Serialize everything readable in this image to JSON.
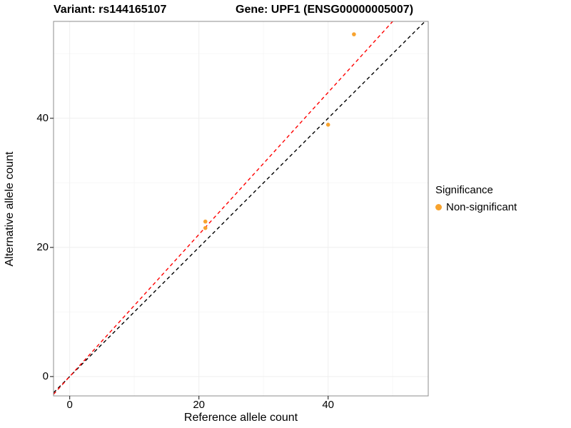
{
  "titles": {
    "left": "Variant: rs144165107",
    "right": "Gene: UPF1 (ENSG00000005007)"
  },
  "chart_data": {
    "type": "scatter",
    "xlabel": "Reference allele count",
    "ylabel": "Alternative allele count",
    "xlim": [
      -2.5,
      55.5
    ],
    "ylim": [
      -3,
      55
    ],
    "xticks": [
      0,
      20,
      40
    ],
    "yticks": [
      0,
      20,
      40
    ],
    "xminor": [
      10,
      30,
      50
    ],
    "yminor": [
      10,
      30,
      50
    ],
    "grid": "on",
    "points": [
      {
        "x": 21,
        "y": 23
      },
      {
        "x": 21,
        "y": 24
      },
      {
        "x": 40,
        "y": 39
      },
      {
        "x": 44,
        "y": 53
      }
    ],
    "point_color": "#F8A32E",
    "point_radius": 2.8,
    "lines": [
      {
        "name": "identity-line",
        "slope": 1,
        "intercept": 0,
        "color": "#000000",
        "dash": "5,4"
      },
      {
        "name": "fit-line",
        "slope": 1.1,
        "intercept": 0,
        "color": "#FF0000",
        "dash": "5,4"
      }
    ],
    "legend": {
      "title": "Significance",
      "position": "right",
      "items": [
        {
          "label": "Non-significant",
          "color": "#F8A32E"
        }
      ]
    },
    "colors": {
      "grid_major": "#EFEFEF",
      "grid_minor": "#F7F7F7",
      "panel_border": "#8C8C8C",
      "tick_mark": "#333333"
    }
  }
}
